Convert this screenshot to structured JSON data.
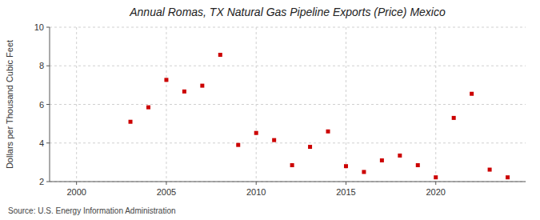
{
  "chart_data": {
    "type": "scatter",
    "title": "Annual Romas, TX Natural Gas Pipeline Exports (Price) Mexico",
    "ylabel": "Dollars per Thousand Cubic Feet",
    "annotations": [
      "Source: U.S. Energy Information Administration"
    ],
    "x": [
      2003,
      2004,
      2005,
      2006,
      2007,
      2008,
      2009,
      2010,
      2011,
      2012,
      2013,
      2014,
      2015,
      2016,
      2017,
      2018,
      2019,
      2020,
      2021,
      2022,
      2023,
      2024
    ],
    "values": [
      5.1,
      5.85,
      7.27,
      6.67,
      6.97,
      8.57,
      3.9,
      4.52,
      4.15,
      2.85,
      3.8,
      4.6,
      2.8,
      2.5,
      3.1,
      3.35,
      2.85,
      2.22,
      5.3,
      6.55,
      2.62,
      2.22
    ],
    "color": "#cc0000",
    "marker": "square",
    "xlim": [
      1998.5,
      2025
    ],
    "ylim": [
      2,
      10
    ],
    "xticks": [
      2000,
      2005,
      2010,
      2015,
      2020
    ],
    "yticks": [
      2,
      4,
      6,
      8,
      10
    ],
    "grid": true
  }
}
